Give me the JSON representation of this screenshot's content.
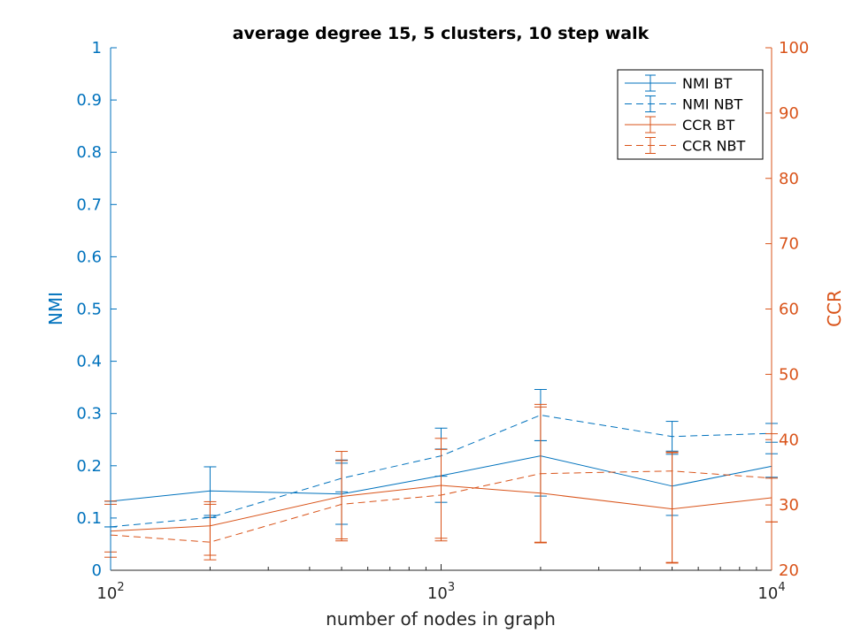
{
  "chart_data": {
    "type": "line",
    "title": "average degree 15, 5 clusters, 10 step walk",
    "xlabel": "number of nodes in graph",
    "xscale": "log",
    "xlim": [
      100,
      10000
    ],
    "x_ticks": [
      {
        "value": 100,
        "base": "10",
        "exp": "2"
      },
      {
        "value": 1000,
        "base": "10",
        "exp": "3"
      },
      {
        "value": 10000,
        "base": "10",
        "exp": "4"
      }
    ],
    "ylabel_left": "NMI",
    "ylim_left": [
      0,
      1
    ],
    "yticks_left": [
      "0",
      "0.1",
      "0.2",
      "0.3",
      "0.4",
      "0.5",
      "0.6",
      "0.7",
      "0.8",
      "0.9",
      "1"
    ],
    "ylabel_right": "CCR",
    "ylim_right": [
      20,
      100
    ],
    "yticks_right": [
      "20",
      "30",
      "40",
      "50",
      "60",
      "70",
      "80",
      "90",
      "100"
    ],
    "x": [
      100,
      200,
      500,
      1000,
      2000,
      5000,
      10000
    ],
    "series": [
      {
        "name": "NMI BT",
        "axis": "left",
        "style": "solid",
        "color": "#0072BD",
        "values": [
          0.132,
          0.152,
          0.146,
          0.181,
          0.219,
          0.161,
          0.199
        ],
        "err_low": [
          0.132,
          0.105,
          0.088,
          0.13,
          0.142,
          0.105,
          0.178
        ],
        "err_high": [
          0.132,
          0.198,
          0.205,
          0.232,
          0.248,
          0.222,
          0.223
        ]
      },
      {
        "name": "NMI NBT",
        "axis": "left",
        "style": "dashed",
        "color": "#0072BD",
        "values": [
          0.083,
          0.101,
          0.176,
          0.219,
          0.297,
          0.256,
          0.262
        ],
        "err_low": [
          0.083,
          0.101,
          0.15,
          0.18,
          0.248,
          0.228,
          0.245
        ],
        "err_high": [
          0.083,
          0.101,
          0.211,
          0.272,
          0.346,
          0.285,
          0.281
        ]
      },
      {
        "name": "CCR BT",
        "axis": "right",
        "style": "solid",
        "color": "#D95319",
        "values": [
          26.0,
          26.8,
          31.3,
          33.0,
          31.8,
          29.4,
          31.1
        ],
        "err_low": [
          22.8,
          22.3,
          24.5,
          24.5,
          24.2,
          21.1,
          27.4
        ],
        "err_high": [
          30.6,
          30.5,
          38.2,
          40.2,
          45.0,
          38.0,
          34.1
        ]
      },
      {
        "name": "CCR NBT",
        "axis": "right",
        "style": "dashed",
        "color": "#D95319",
        "values": [
          25.4,
          24.3,
          30.1,
          31.5,
          34.8,
          35.2,
          34.1
        ],
        "err_low": [
          22.0,
          21.6,
          24.8,
          24.9,
          24.3,
          21.2,
          27.4
        ],
        "err_high": [
          30.1,
          30.1,
          36.8,
          38.5,
          45.4,
          38.1,
          40.9
        ]
      }
    ],
    "legend": {
      "position": "top-right",
      "boxed": true
    },
    "colors": {
      "left_axis": "#0072BD",
      "right_axis": "#D95319"
    }
  }
}
